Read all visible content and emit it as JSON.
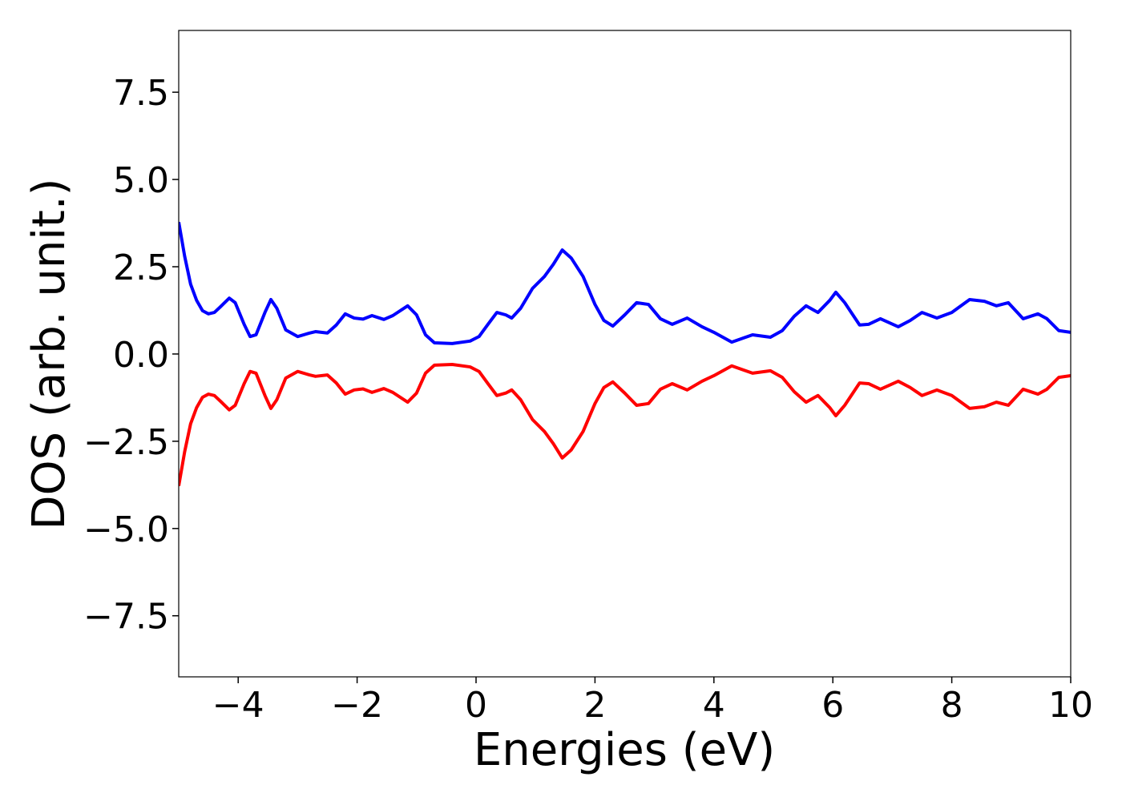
{
  "chart_data": {
    "type": "line",
    "xlabel": "Energies (eV)",
    "ylabel": "DOS (arb. unit.)",
    "x": [
      -5,
      -4.9,
      -4.8,
      -4.7,
      -4.6,
      -4.5,
      -4.4,
      -4.3,
      -4.15,
      -4.05,
      -3.9,
      -3.8,
      -3.7,
      -3.55,
      -3.45,
      -3.35,
      -3.2,
      -3.0,
      -2.8,
      -2.7,
      -2.5,
      -2.35,
      -2.2,
      -2.05,
      -1.9,
      -1.75,
      -1.55,
      -1.4,
      -1.15,
      -1.0,
      -0.85,
      -0.7,
      -0.4,
      -0.1,
      0.05,
      0.2,
      0.35,
      0.5,
      0.6,
      0.75,
      0.95,
      1.15,
      1.3,
      1.45,
      1.6,
      1.8,
      2.0,
      2.15,
      2.3,
      2.5,
      2.7,
      2.9,
      3.1,
      3.3,
      3.55,
      3.8,
      4.0,
      4.3,
      4.5,
      4.65,
      4.95,
      5.15,
      5.35,
      5.55,
      5.75,
      5.95,
      6.05,
      6.2,
      6.45,
      6.6,
      6.8,
      7.1,
      7.3,
      7.5,
      7.75,
      8.0,
      8.3,
      8.55,
      8.75,
      8.95,
      9.2,
      9.45,
      9.6,
      9.8,
      10.0
    ],
    "series": [
      {
        "color": "#0000ff",
        "values": [
          3.78,
          2.8,
          2.0,
          1.54,
          1.24,
          1.15,
          1.19,
          1.35,
          1.6,
          1.47,
          0.85,
          0.5,
          0.55,
          1.19,
          1.56,
          1.31,
          0.69,
          0.5,
          0.6,
          0.64,
          0.6,
          0.83,
          1.15,
          1.03,
          1.0,
          1.1,
          0.99,
          1.1,
          1.38,
          1.12,
          0.55,
          0.32,
          0.3,
          0.37,
          0.5,
          0.85,
          1.19,
          1.12,
          1.03,
          1.31,
          1.88,
          2.22,
          2.57,
          2.98,
          2.75,
          2.22,
          1.42,
          0.96,
          0.8,
          1.12,
          1.47,
          1.42,
          1.01,
          0.85,
          1.03,
          0.78,
          0.62,
          0.34,
          0.46,
          0.55,
          0.48,
          0.67,
          1.08,
          1.38,
          1.19,
          1.54,
          1.77,
          1.47,
          0.83,
          0.85,
          1.01,
          0.78,
          0.96,
          1.19,
          1.03,
          1.19,
          1.56,
          1.51,
          1.38,
          1.47,
          1.01,
          1.15,
          1.01,
          0.67,
          0.62
        ]
      },
      {
        "color": "#ff0000",
        "values": [
          -3.78,
          -2.8,
          -2.0,
          -1.54,
          -1.24,
          -1.15,
          -1.19,
          -1.35,
          -1.6,
          -1.47,
          -0.85,
          -0.5,
          -0.55,
          -1.19,
          -1.56,
          -1.31,
          -0.69,
          -0.5,
          -0.6,
          -0.64,
          -0.6,
          -0.83,
          -1.15,
          -1.03,
          -1.0,
          -1.1,
          -0.99,
          -1.1,
          -1.38,
          -1.12,
          -0.55,
          -0.32,
          -0.3,
          -0.37,
          -0.5,
          -0.85,
          -1.19,
          -1.12,
          -1.03,
          -1.31,
          -1.88,
          -2.22,
          -2.57,
          -2.98,
          -2.75,
          -2.22,
          -1.42,
          -0.96,
          -0.8,
          -1.12,
          -1.47,
          -1.42,
          -1.01,
          -0.85,
          -1.03,
          -0.78,
          -0.62,
          -0.34,
          -0.46,
          -0.55,
          -0.48,
          -0.67,
          -1.08,
          -1.38,
          -1.19,
          -1.54,
          -1.77,
          -1.47,
          -0.83,
          -0.85,
          -1.01,
          -0.78,
          -0.96,
          -1.19,
          -1.03,
          -1.19,
          -1.56,
          -1.51,
          -1.38,
          -1.47,
          -1.01,
          -1.15,
          -1.01,
          -0.67,
          -0.62
        ]
      }
    ],
    "xlim": [
      -5,
      10
    ],
    "xticks": [
      {
        "value": -4,
        "label": "−4"
      },
      {
        "value": -2,
        "label": "−2"
      },
      0,
      2,
      4,
      6,
      8,
      10
    ],
    "ylim": [
      -9.25,
      9.27
    ],
    "yticks": [
      {
        "value": -7.5,
        "label": "−7.5"
      },
      {
        "value": -5,
        "label": "−5.0"
      },
      {
        "value": -2.5,
        "label": "−2.5"
      },
      {
        "value": 0,
        "label": "0.0"
      },
      {
        "value": 2.5,
        "label": "2.5"
      },
      {
        "value": 5,
        "label": "5.0"
      },
      {
        "value": 7.5,
        "label": "7.5"
      }
    ],
    "grid": false
  }
}
